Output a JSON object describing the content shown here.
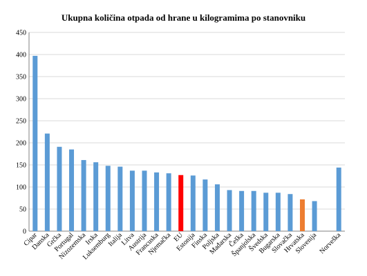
{
  "chart_data": {
    "type": "bar",
    "title": "Ukupna količina otpada od hrane u kilogramima po stanovniku",
    "xlabel": "",
    "ylabel": "",
    "ylim": [
      0,
      450
    ],
    "yticks": [
      0,
      50,
      100,
      150,
      200,
      250,
      300,
      350,
      400,
      450
    ],
    "grid": true,
    "legend": "none",
    "categories": [
      "Cipar",
      "Danska",
      "Grčka",
      "Portugal",
      "Nizozemska",
      "Irska",
      "Luksemburg",
      "Italija",
      "Litva",
      "Austrija",
      "Francuska",
      "Njemačka",
      "EU",
      "Estonija",
      "Finska",
      "Poljska",
      "Mađarska",
      "Češka",
      "Španjolska",
      "Švedska",
      "Bugarska",
      "Slovačka",
      "Hrvatska",
      "Slovenija",
      "",
      "Norveška"
    ],
    "values": [
      397,
      221,
      191,
      185,
      161,
      156,
      148,
      146,
      137,
      137,
      133,
      131,
      127,
      126,
      117,
      106,
      93,
      91,
      91,
      87,
      87,
      84,
      72,
      68,
      null,
      144
    ],
    "colors": {
      "default": "#5b9bd5",
      "EU": "#ff0000",
      "Hrvatska": "#ed7d31"
    }
  }
}
